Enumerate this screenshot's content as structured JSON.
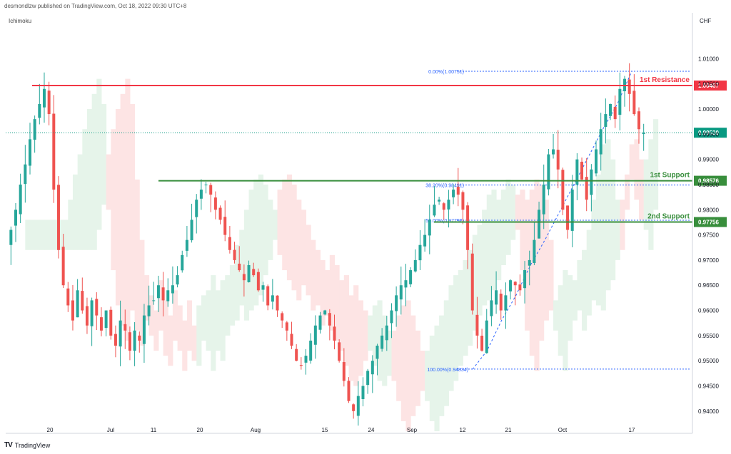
{
  "header": {
    "published": "desmondlzw published on TradingView.com, Oct 18, 2022 09:30 UTC+8",
    "indicator": "Ichimoku",
    "brand_logo": "TV",
    "brand": "TradingView"
  },
  "colors": {
    "up": "#26a69a",
    "down": "#ef5350",
    "resistance": "#f23645",
    "support": "#388e3c",
    "cloud_bull": "#e6f4ea",
    "cloud_bear": "#fde4e4",
    "fib": "#2962ff",
    "last_price": "#089981"
  },
  "chart_data": {
    "type": "candlestick",
    "currency": "CHF",
    "ylim": [
      0.937,
      1.016
    ],
    "y_ticks": [
      "1.01000",
      "1.00500",
      "1.00000",
      "0.99500",
      "0.99000",
      "0.98500",
      "0.98000",
      "0.97500",
      "0.97000",
      "0.96500",
      "0.96000",
      "0.95500",
      "0.95000",
      "0.94500",
      "0.94000"
    ],
    "x_ticks": [
      "20",
      "Jul",
      "11",
      "20",
      "Aug",
      "15",
      "24",
      "Sep",
      "12",
      "21",
      "Oct",
      "17"
    ],
    "levels": [
      {
        "label": "1st Resistance",
        "value": "1.00467",
        "y": 1.00467,
        "kind": "resistance"
      },
      {
        "label": "1st Support",
        "value": "0.98576",
        "y": 0.98576,
        "kind": "support"
      },
      {
        "label": "2nd Support",
        "value": "0.97756",
        "y": 0.97756,
        "kind": "support"
      }
    ],
    "last_price": {
      "value": "0.99530",
      "y": 0.9953
    },
    "fibonacci": [
      {
        "label": "0.00%(1.00751)",
        "y": 1.00751
      },
      {
        "label": "38.20%(0.98491)",
        "y": 0.98491
      },
      {
        "label": "50.00%(0.97792)",
        "y": 0.97792
      },
      {
        "label": "100.00%(0.94834)",
        "y": 0.94834
      }
    ],
    "swing_path": [
      0.9483,
      0.952,
      0.958,
      0.963,
      0.969,
      0.974,
      0.9795,
      0.985,
      0.9905,
      0.996,
      1.001,
      1.0075
    ],
    "closes": [
      0.976,
      0.98,
      0.985,
      0.989,
      0.994,
      0.998,
      1.001,
      1.004,
      0.999,
      0.984,
      0.972,
      0.965,
      0.961,
      0.958,
      0.964,
      0.96,
      0.957,
      0.962,
      0.959,
      0.956,
      0.96,
      0.955,
      0.953,
      0.958,
      0.956,
      0.952,
      0.956,
      0.954,
      0.959,
      0.961,
      0.962,
      0.965,
      0.962,
      0.964,
      0.965,
      0.967,
      0.971,
      0.974,
      0.978,
      0.982,
      0.984,
      0.985,
      0.983,
      0.98,
      0.978,
      0.975,
      0.972,
      0.97,
      0.968,
      0.966,
      0.969,
      0.967,
      0.964,
      0.965,
      0.961,
      0.963,
      0.96,
      0.958,
      0.956,
      0.953,
      0.95,
      0.949,
      0.951,
      0.954,
      0.957,
      0.959,
      0.96,
      0.957,
      0.954,
      0.95,
      0.946,
      0.942,
      0.94,
      0.943,
      0.945,
      0.948,
      0.95,
      0.953,
      0.955,
      0.957,
      0.96,
      0.963,
      0.965,
      0.966,
      0.968,
      0.97,
      0.973,
      0.975,
      0.978,
      0.981,
      0.982,
      0.98,
      0.982,
      0.984,
      0.983,
      0.98,
      0.972,
      0.96,
      0.955,
      0.952,
      0.958,
      0.962,
      0.964,
      0.96,
      0.963,
      0.966,
      0.965,
      0.964,
      0.968,
      0.97,
      0.974,
      0.98,
      0.985,
      0.991,
      0.992,
      0.988,
      0.98,
      0.976,
      0.984,
      0.99,
      0.986,
      0.982,
      0.988,
      0.992,
      0.996,
      0.999,
      1.001,
      0.998,
      1.004,
      1.006,
      1.003,
      0.999,
      0.996,
      0.9953
    ]
  }
}
